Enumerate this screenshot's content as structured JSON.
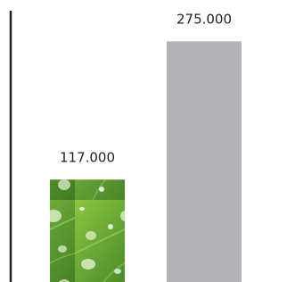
{
  "chart_data": {
    "type": "bar",
    "categories": [
      null,
      null
    ],
    "values": [
      117000,
      275000
    ],
    "value_labels": [
      "117.000",
      "275.000"
    ],
    "colors": [
      "#5f9e32",
      "#b3b3b6"
    ],
    "ylim": [
      0,
      310000
    ]
  }
}
